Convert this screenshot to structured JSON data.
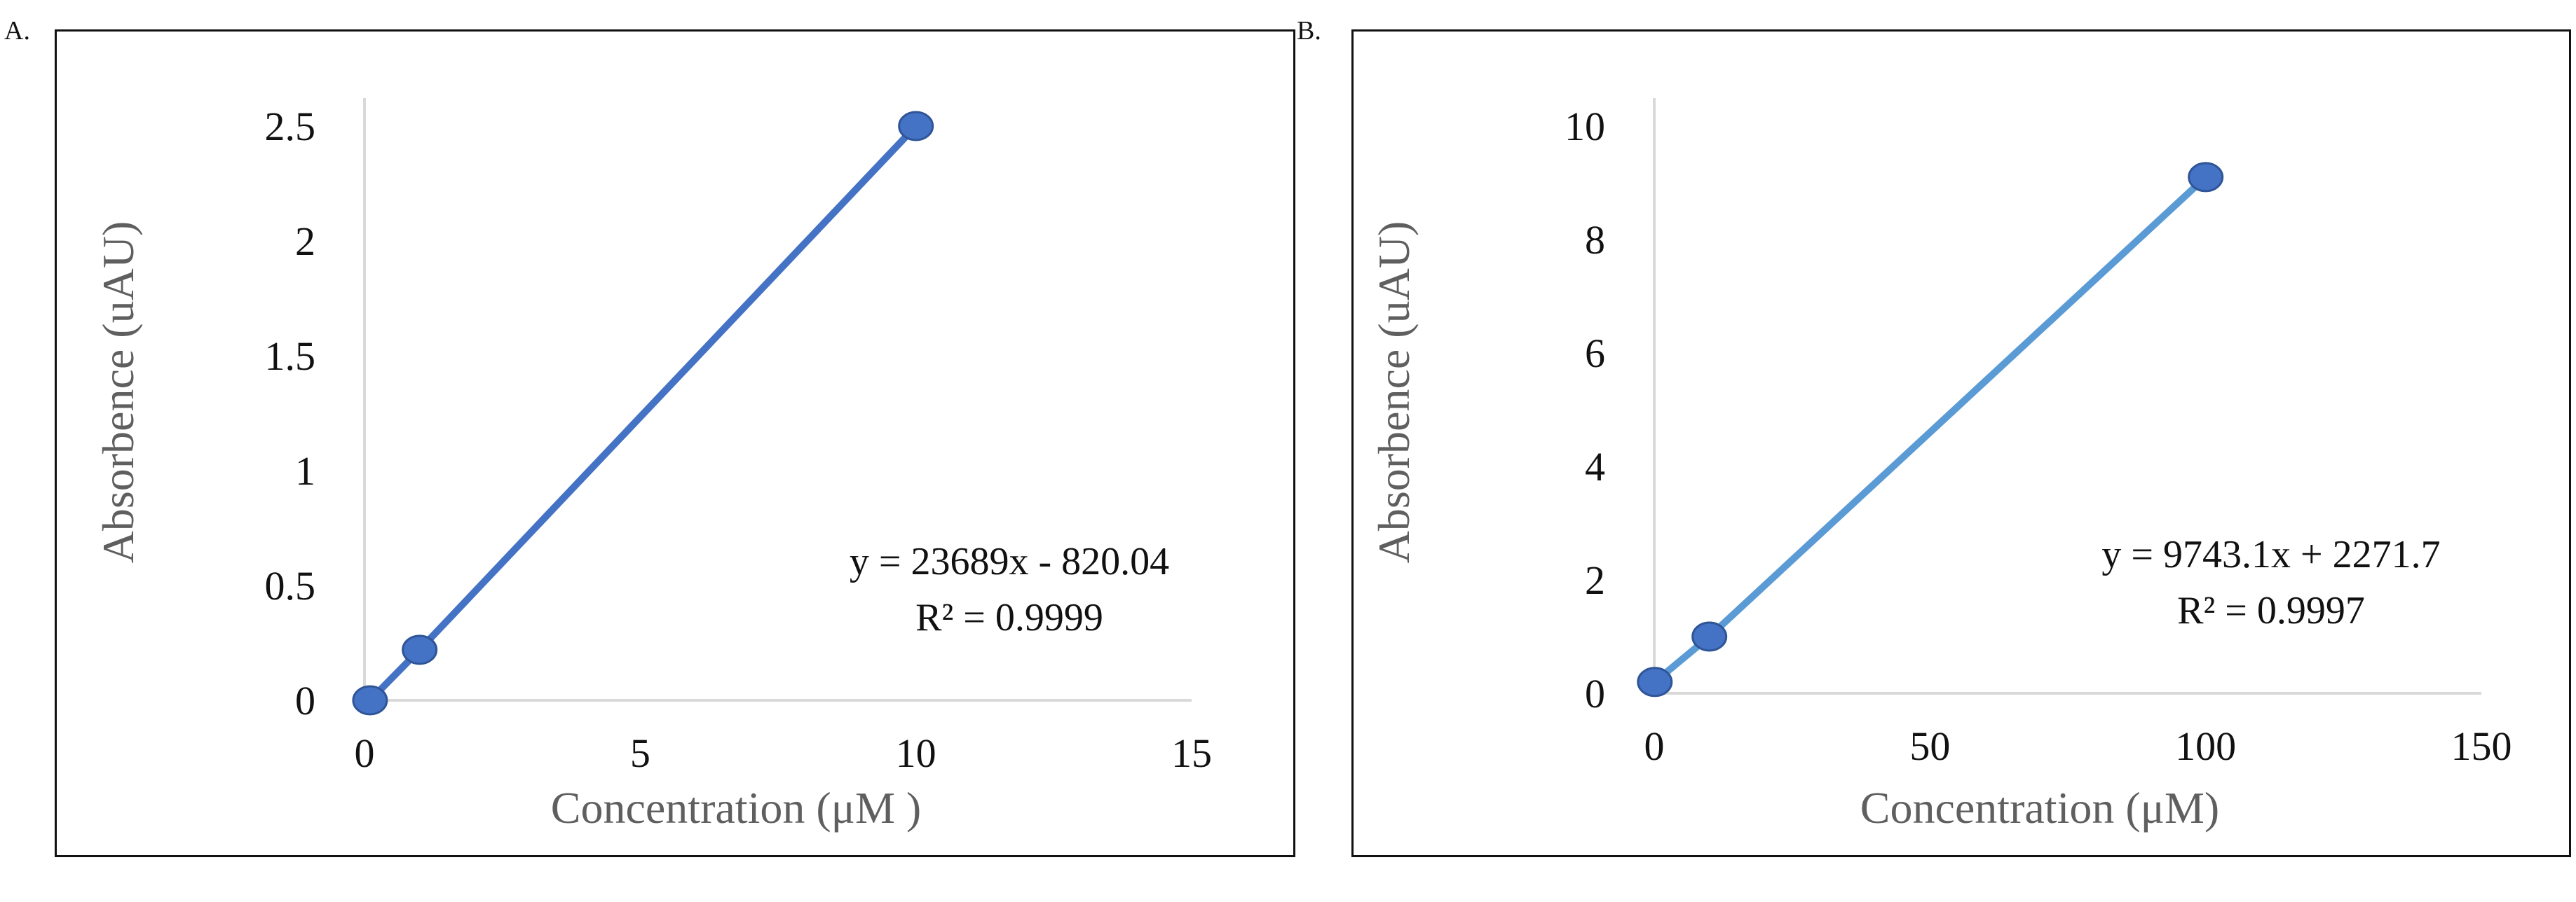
{
  "panels": [
    {
      "letter": "A."
    },
    {
      "letter": "B."
    }
  ],
  "colors": {
    "series": "#4472c4",
    "series_b": "#5b9bd5",
    "marker": "#4472c4",
    "marker_edge": "#2f5597",
    "axis": "#d9d9d9",
    "text": "#111111",
    "axis_label": "#5f5f5f"
  },
  "chart_data": [
    {
      "type": "scatter",
      "title": "",
      "xlabel": "Concentration (μM )",
      "ylabel": "Absorbence (uAU)",
      "xlim": [
        0,
        15
      ],
      "ylim": [
        0,
        2.5
      ],
      "x_ticks": [
        "0",
        "5",
        "10",
        "15"
      ],
      "y_ticks": [
        "0",
        "0.5",
        "1",
        "1.5",
        "2",
        "2.5"
      ],
      "grid": false,
      "legend": "none",
      "series": [
        {
          "x": [
            0.1,
            1,
            10
          ],
          "y": [
            0.0,
            0.22,
            2.5
          ]
        }
      ],
      "trendline": {
        "equation": "y = 23689x - 820.04",
        "r2": "R² = 0.9999"
      }
    },
    {
      "type": "scatter",
      "title": "",
      "xlabel": "Concentration (μM)",
      "ylabel": "Absorbence (uAU)",
      "xlim": [
        0,
        150
      ],
      "ylim": [
        0,
        10
      ],
      "x_ticks": [
        "0",
        "50",
        "100",
        "150"
      ],
      "y_ticks": [
        "0",
        "2",
        "4",
        "6",
        "8",
        "10"
      ],
      "grid": false,
      "legend": "none",
      "series": [
        {
          "x": [
            0.1,
            10,
            100
          ],
          "y": [
            0.2,
            1.0,
            9.1
          ]
        }
      ],
      "trendline": {
        "equation": "y = 9743.1x + 2271.7",
        "r2": "R² = 0.9997"
      }
    }
  ]
}
